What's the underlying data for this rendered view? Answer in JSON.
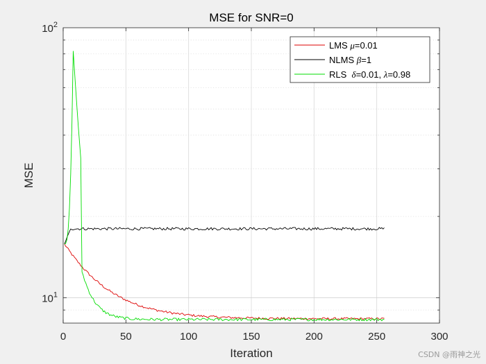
{
  "chart_data": {
    "type": "line",
    "title": "MSE for SNR=0",
    "xlabel": "Iteration",
    "ylabel": "MSE",
    "xlim": [
      0,
      300
    ],
    "ylim": [
      8.05,
      100
    ],
    "yscale": "log",
    "x_ticks": [
      0,
      50,
      100,
      150,
      200,
      250,
      300
    ],
    "y_ticks": [
      10,
      100
    ],
    "y_tick_labels": [
      {
        "base": "10",
        "exp": "1"
      },
      {
        "base": "10",
        "exp": "2"
      }
    ],
    "grid": true,
    "legend_location": "top-right",
    "n_points": 256,
    "series": [
      {
        "name": "LMS",
        "legend_label": {
          "prefix": "LMS ",
          "greek": "μ",
          "suffix": "=0.01"
        },
        "color": "#dd0000",
        "start": 15.8,
        "final": 8.35,
        "decay_iterations": 30,
        "noise": 0.01
      },
      {
        "name": "NLMS",
        "legend_label": {
          "prefix": "NLMS ",
          "greek": "β",
          "suffix": "=1"
        },
        "color": "#000000",
        "start": 15.8,
        "steady": 18.0,
        "rise_end_iteration": 6,
        "noise": 0.012
      },
      {
        "name": "RLS",
        "legend_label": {
          "prefix": "RLS  ",
          "greek1": "δ",
          "mid": "=0.01, ",
          "greek2": "λ",
          "suffix": "=0.98"
        },
        "color": "#00dd00",
        "start": 15.8,
        "peak": 82.0,
        "peak_iteration": 8,
        "final": 8.3,
        "decay_iterations": 9,
        "noise": 0.012
      }
    ]
  },
  "watermark": "CSDN @雨神之光"
}
